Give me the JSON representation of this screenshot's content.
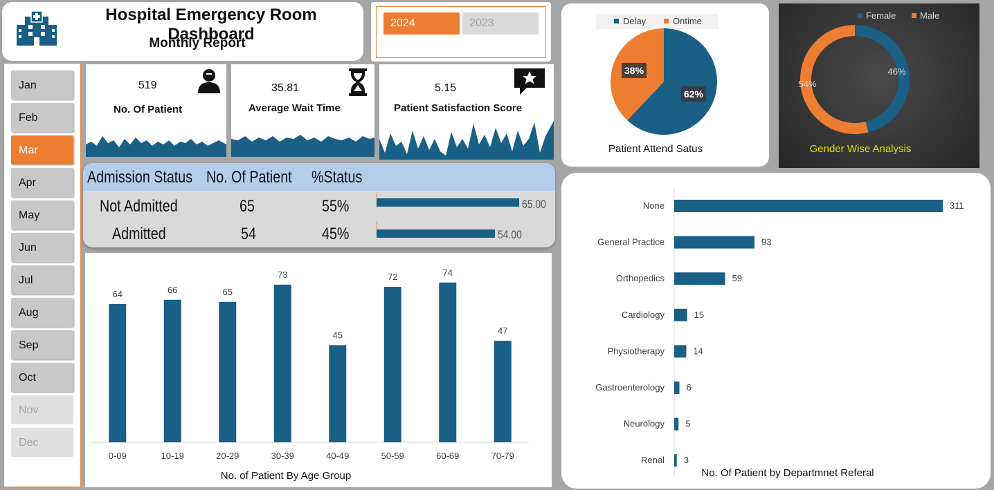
{
  "header": {
    "title": "Hospital Emergency Room Dashboard",
    "subtitle": "Monthly Report"
  },
  "years": [
    {
      "label": "2024",
      "active": true
    },
    {
      "label": "2023",
      "active": false
    }
  ],
  "months": [
    {
      "label": "Jan",
      "state": "normal"
    },
    {
      "label": "Feb",
      "state": "normal"
    },
    {
      "label": "Mar",
      "state": "active"
    },
    {
      "label": "Apr",
      "state": "normal"
    },
    {
      "label": "May",
      "state": "normal"
    },
    {
      "label": "Jun",
      "state": "normal"
    },
    {
      "label": "Jul",
      "state": "normal"
    },
    {
      "label": "Aug",
      "state": "normal"
    },
    {
      "label": "Sep",
      "state": "normal"
    },
    {
      "label": "Oct",
      "state": "normal"
    },
    {
      "label": "Nov",
      "state": "disabled"
    },
    {
      "label": "Dec",
      "state": "disabled"
    }
  ],
  "kpis": [
    {
      "value": "519",
      "label": "No. Of Patient",
      "icon": "patient-icon"
    },
    {
      "value": "35.81",
      "label": "Average Wait Time",
      "icon": "hourglass-icon"
    },
    {
      "value": "5.15",
      "label": "Patient Satisfaction Score",
      "icon": "star-review-icon"
    }
  ],
  "admission": {
    "headers": [
      "Admission Status",
      "No. Of  Patient",
      "%Status"
    ],
    "rows": [
      {
        "status": "Not Admitted",
        "count": "65",
        "pct": "55%",
        "bar_value": 65,
        "bar_label": "65.00"
      },
      {
        "status": "Admitted",
        "count": "54",
        "pct": "45%",
        "bar_value": 54,
        "bar_label": "54.00"
      }
    ]
  },
  "colors": {
    "blue": "#1a5f85",
    "orange": "#ed7d31",
    "grey": "#d9d9d9",
    "accent_yellow": "#e0e000"
  },
  "chart_data": [
    {
      "type": "bar",
      "title": "No. of  Patient By Age Group",
      "categories": [
        "0-09",
        "10-19",
        "20-29",
        "30-39",
        "40-49",
        "50-59",
        "60-69",
        "70-79"
      ],
      "values": [
        64,
        66,
        65,
        73,
        45,
        72,
        74,
        47
      ]
    },
    {
      "type": "pie",
      "title": "Patient Attend Satus",
      "legend": "top",
      "slices": [
        {
          "name": "Delay",
          "value": 62,
          "label": "62%"
        },
        {
          "name": "Ontime",
          "value": 38,
          "label": "38%"
        }
      ]
    },
    {
      "type": "pie",
      "subtype": "donut",
      "title": "Gender Wise Analysis",
      "legend": "top-right",
      "slices": [
        {
          "name": "Female",
          "value": 46,
          "label": "46%"
        },
        {
          "name": "Male",
          "value": 54,
          "label": "54%"
        }
      ]
    },
    {
      "type": "bar",
      "orientation": "horizontal",
      "title": "No. Of Patient by Departmnet Referal",
      "categories": [
        "None",
        "General Practice",
        "Orthopedics",
        "Cardiology",
        "Physiotherapy",
        "Gastroenterology",
        "Neurology",
        "Renal"
      ],
      "values": [
        311,
        93,
        59,
        15,
        14,
        6,
        5,
        3
      ]
    }
  ]
}
